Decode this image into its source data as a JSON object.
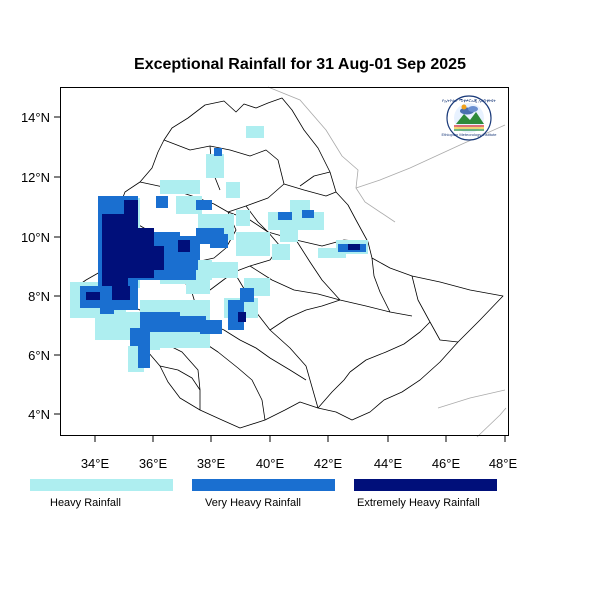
{
  "title": "Exceptional Rainfall for 31 Aug-01 Sep 2025",
  "x_ticks": [
    "34°E",
    "36°E",
    "38°E",
    "40°E",
    "42°E",
    "44°E",
    "46°E",
    "48°E"
  ],
  "y_ticks": [
    "14°N",
    "12°N",
    "10°N",
    "8°N",
    "6°N",
    "4°N"
  ],
  "legend": [
    {
      "label": "Heavy Rainfall",
      "color": "#aeeef0"
    },
    {
      "label": "Very Heavy Rainfall",
      "color": "#1a6fd0"
    },
    {
      "label": "Extremely Heavy Rainfall",
      "color": "#000f7a"
    }
  ],
  "logo": {
    "name": "ethiopian-meteorology-institute-logo",
    "top_text": "የኢትዮጵያ ሚቲዎሮሎጂ ኢንስቲትዩት",
    "bottom_text": "Ethiopian Meteorology Institute"
  }
}
